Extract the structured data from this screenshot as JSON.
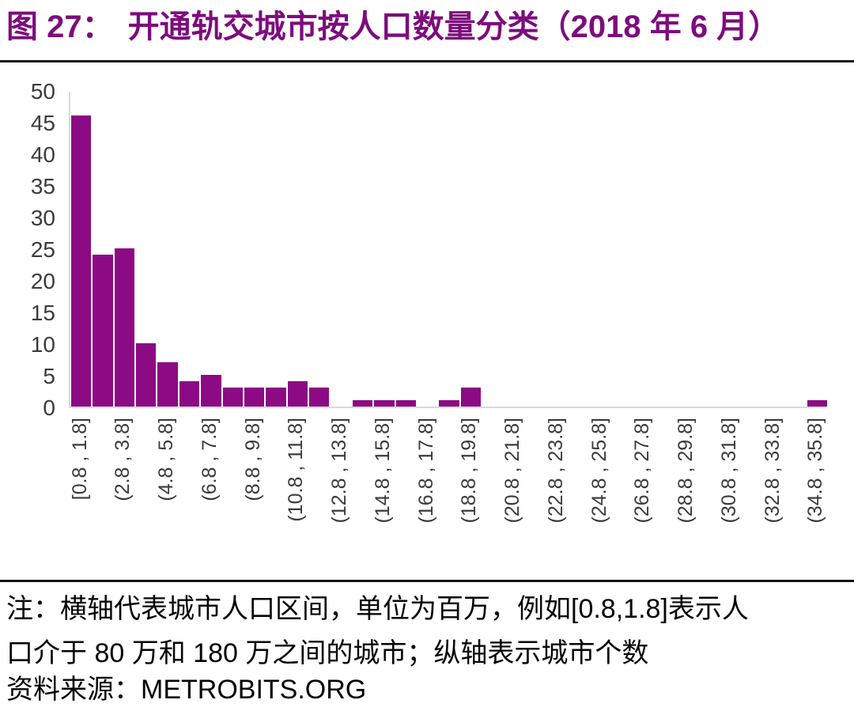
{
  "header": {
    "figure_label": "图 27：",
    "title": "开通轨交城市按人口数量分类（2018 年 6 月）"
  },
  "chart_data": {
    "type": "bar",
    "title": "图 27：开通轨交城市按人口数量分类（2018 年 6 月）",
    "xlabel": "",
    "ylabel": "",
    "ylim": [
      0,
      50
    ],
    "y_ticks": [
      0,
      5,
      10,
      15,
      20,
      25,
      30,
      35,
      40,
      45,
      50
    ],
    "grid": false,
    "legend": "none",
    "bin_start": 0.8,
    "bin_width": 1.0,
    "values": [
      46,
      24,
      25,
      10,
      7,
      4,
      5,
      3,
      3,
      3,
      4,
      3,
      0,
      1,
      1,
      1,
      0,
      1,
      3,
      0,
      0,
      0,
      0,
      0,
      0,
      0,
      0,
      0,
      0,
      0,
      0,
      0,
      0,
      0,
      1
    ],
    "x_tick_every": 2,
    "x_tick_labels": [
      "[0.8 , 1.8]",
      "(2.8 , 3.8]",
      "(4.8 , 5.8]",
      "(6.8 , 7.8]",
      "(8.8 , 9.8]",
      "(10.8 , 11.8]",
      "(12.8 , 13.8]",
      "(14.8 , 15.8]",
      "(16.8 , 17.8]",
      "(18.8 , 19.8]",
      "(20.8 , 21.8]",
      "(22.8 , 23.8]",
      "(24.8 , 25.8]",
      "(26.8 , 27.8]",
      "(28.8 , 29.8]",
      "(30.8 , 31.8]",
      "(32.8 , 33.8]",
      "(34.8 , 35.8]"
    ],
    "bar_color": "#8C0A84",
    "axis_color": "#D9D9D9",
    "title_color": "#7D0C7D"
  },
  "footer": {
    "note_line1": "注：横轴代表城市人口区间，单位为百万，例如[0.8,1.8]表示人",
    "note_line2": "口介于 80 万和 180 万之间的城市；纵轴表示城市个数",
    "source": "资料来源：METROBITS.ORG"
  }
}
